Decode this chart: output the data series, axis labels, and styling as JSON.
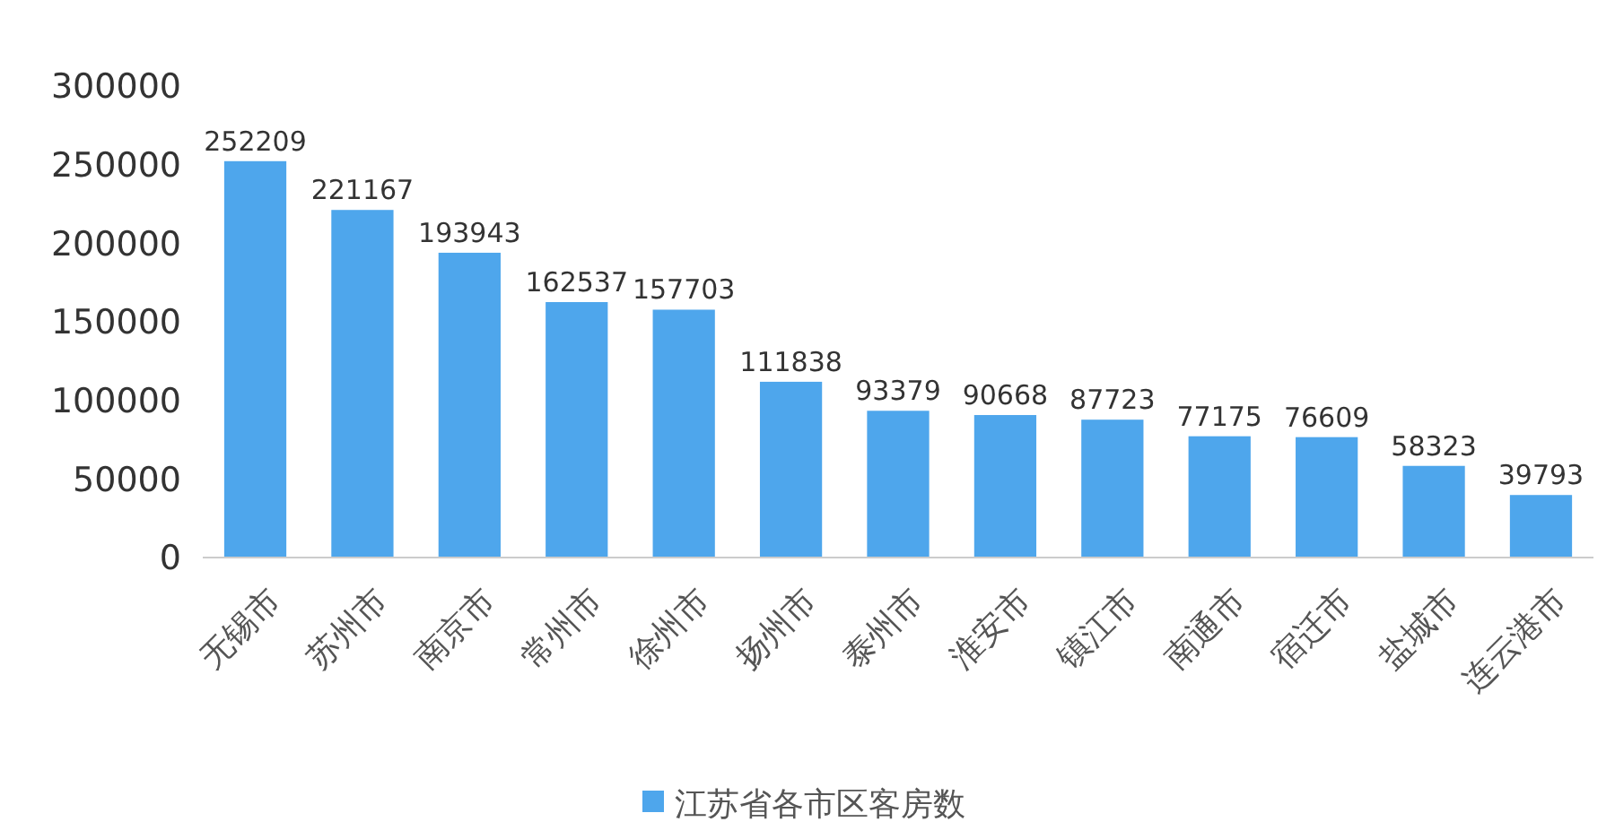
{
  "chart_data": {
    "type": "bar",
    "categories": [
      "无锡市",
      "苏州市",
      "南京市",
      "常州市",
      "徐州市",
      "扬州市",
      "泰州市",
      "淮安市",
      "镇江市",
      "南通市",
      "宿迁市",
      "盐城市",
      "连云港市"
    ],
    "series": [
      {
        "name": "江苏省各市区客房数",
        "color": "#4ea6ec",
        "values": [
          252209,
          221167,
          193943,
          162537,
          157703,
          111838,
          93379,
          90668,
          87723,
          77175,
          76609,
          58323,
          39793
        ]
      }
    ],
    "ylim": [
      0,
      300000
    ],
    "yticks": [
      0,
      50000,
      100000,
      150000,
      200000,
      250000,
      300000
    ],
    "data_labels": true,
    "legend": "bottom",
    "grid": false
  }
}
